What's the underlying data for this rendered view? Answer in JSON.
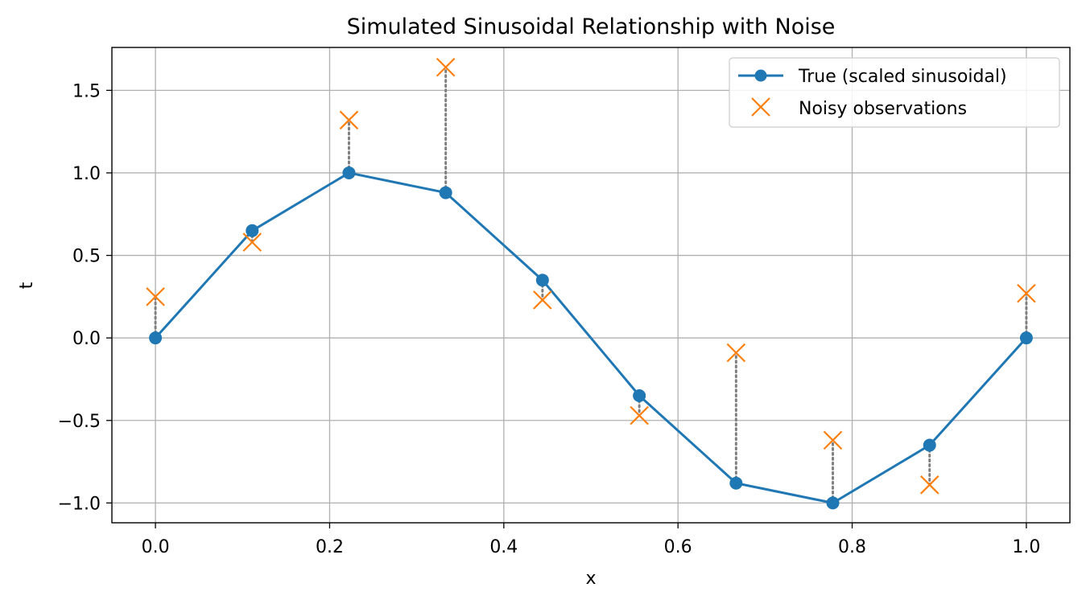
{
  "chart_data": {
    "type": "line",
    "title": "Simulated Sinusoidal Relationship with Noise",
    "xlabel": "x",
    "ylabel": "t",
    "xlim": [
      -0.05,
      1.05
    ],
    "ylim": [
      -1.12,
      1.76
    ],
    "xticks": [
      0.0,
      0.2,
      0.4,
      0.6,
      0.8,
      1.0
    ],
    "xtick_labels": [
      "0.0",
      "0.2",
      "0.4",
      "0.6",
      "0.8",
      "1.0"
    ],
    "yticks": [
      -1.0,
      -0.5,
      0.0,
      0.5,
      1.0,
      1.5
    ],
    "ytick_labels": [
      "−1.0",
      "−0.5",
      "0.0",
      "0.5",
      "1.0",
      "1.5"
    ],
    "grid": true,
    "legend_position": "top-right",
    "x": [
      0.0,
      0.1111,
      0.2222,
      0.3333,
      0.4444,
      0.5556,
      0.6667,
      0.7778,
      0.8889,
      1.0
    ],
    "series": [
      {
        "name": "True (scaled sinusoidal)",
        "style": "line-with-markers",
        "color": "#1f77b4",
        "values": [
          0.0,
          0.65,
          1.0,
          0.88,
          0.35,
          -0.35,
          -0.88,
          -1.0,
          -0.65,
          0.0
        ]
      },
      {
        "name": "Noisy observations",
        "style": "x-markers",
        "color": "#ff7f0e",
        "values": [
          0.25,
          0.58,
          1.32,
          1.64,
          0.23,
          -0.47,
          -0.09,
          -0.62,
          -0.89,
          0.27
        ]
      }
    ],
    "residual_lines": {
      "color": "#808080",
      "style": "dotted"
    }
  }
}
